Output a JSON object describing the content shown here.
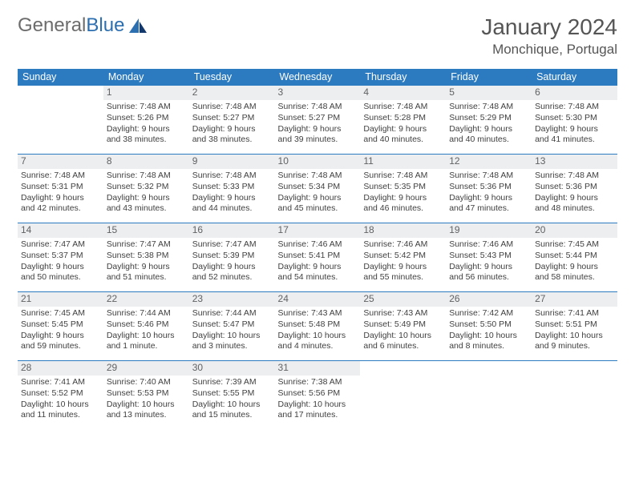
{
  "logo": {
    "word1": "General",
    "word2": "Blue"
  },
  "title": "January 2024",
  "location": "Monchique, Portugal",
  "colors": {
    "header_bg": "#2c7ac0",
    "header_text": "#ffffff",
    "daynum_bg": "#eceef0",
    "cell_border": "#2c7ac0",
    "body_text": "#404040"
  },
  "weekdays": [
    "Sunday",
    "Monday",
    "Tuesday",
    "Wednesday",
    "Thursday",
    "Friday",
    "Saturday"
  ],
  "start_offset": 1,
  "days": [
    {
      "n": 1,
      "sr": "7:48 AM",
      "ss": "5:26 PM",
      "dl": "9 hours and 38 minutes."
    },
    {
      "n": 2,
      "sr": "7:48 AM",
      "ss": "5:27 PM",
      "dl": "9 hours and 38 minutes."
    },
    {
      "n": 3,
      "sr": "7:48 AM",
      "ss": "5:27 PM",
      "dl": "9 hours and 39 minutes."
    },
    {
      "n": 4,
      "sr": "7:48 AM",
      "ss": "5:28 PM",
      "dl": "9 hours and 40 minutes."
    },
    {
      "n": 5,
      "sr": "7:48 AM",
      "ss": "5:29 PM",
      "dl": "9 hours and 40 minutes."
    },
    {
      "n": 6,
      "sr": "7:48 AM",
      "ss": "5:30 PM",
      "dl": "9 hours and 41 minutes."
    },
    {
      "n": 7,
      "sr": "7:48 AM",
      "ss": "5:31 PM",
      "dl": "9 hours and 42 minutes."
    },
    {
      "n": 8,
      "sr": "7:48 AM",
      "ss": "5:32 PM",
      "dl": "9 hours and 43 minutes."
    },
    {
      "n": 9,
      "sr": "7:48 AM",
      "ss": "5:33 PM",
      "dl": "9 hours and 44 minutes."
    },
    {
      "n": 10,
      "sr": "7:48 AM",
      "ss": "5:34 PM",
      "dl": "9 hours and 45 minutes."
    },
    {
      "n": 11,
      "sr": "7:48 AM",
      "ss": "5:35 PM",
      "dl": "9 hours and 46 minutes."
    },
    {
      "n": 12,
      "sr": "7:48 AM",
      "ss": "5:36 PM",
      "dl": "9 hours and 47 minutes."
    },
    {
      "n": 13,
      "sr": "7:48 AM",
      "ss": "5:36 PM",
      "dl": "9 hours and 48 minutes."
    },
    {
      "n": 14,
      "sr": "7:47 AM",
      "ss": "5:37 PM",
      "dl": "9 hours and 50 minutes."
    },
    {
      "n": 15,
      "sr": "7:47 AM",
      "ss": "5:38 PM",
      "dl": "9 hours and 51 minutes."
    },
    {
      "n": 16,
      "sr": "7:47 AM",
      "ss": "5:39 PM",
      "dl": "9 hours and 52 minutes."
    },
    {
      "n": 17,
      "sr": "7:46 AM",
      "ss": "5:41 PM",
      "dl": "9 hours and 54 minutes."
    },
    {
      "n": 18,
      "sr": "7:46 AM",
      "ss": "5:42 PM",
      "dl": "9 hours and 55 minutes."
    },
    {
      "n": 19,
      "sr": "7:46 AM",
      "ss": "5:43 PM",
      "dl": "9 hours and 56 minutes."
    },
    {
      "n": 20,
      "sr": "7:45 AM",
      "ss": "5:44 PM",
      "dl": "9 hours and 58 minutes."
    },
    {
      "n": 21,
      "sr": "7:45 AM",
      "ss": "5:45 PM",
      "dl": "9 hours and 59 minutes."
    },
    {
      "n": 22,
      "sr": "7:44 AM",
      "ss": "5:46 PM",
      "dl": "10 hours and 1 minute."
    },
    {
      "n": 23,
      "sr": "7:44 AM",
      "ss": "5:47 PM",
      "dl": "10 hours and 3 minutes."
    },
    {
      "n": 24,
      "sr": "7:43 AM",
      "ss": "5:48 PM",
      "dl": "10 hours and 4 minutes."
    },
    {
      "n": 25,
      "sr": "7:43 AM",
      "ss": "5:49 PM",
      "dl": "10 hours and 6 minutes."
    },
    {
      "n": 26,
      "sr": "7:42 AM",
      "ss": "5:50 PM",
      "dl": "10 hours and 8 minutes."
    },
    {
      "n": 27,
      "sr": "7:41 AM",
      "ss": "5:51 PM",
      "dl": "10 hours and 9 minutes."
    },
    {
      "n": 28,
      "sr": "7:41 AM",
      "ss": "5:52 PM",
      "dl": "10 hours and 11 minutes."
    },
    {
      "n": 29,
      "sr": "7:40 AM",
      "ss": "5:53 PM",
      "dl": "10 hours and 13 minutes."
    },
    {
      "n": 30,
      "sr": "7:39 AM",
      "ss": "5:55 PM",
      "dl": "10 hours and 15 minutes."
    },
    {
      "n": 31,
      "sr": "7:38 AM",
      "ss": "5:56 PM",
      "dl": "10 hours and 17 minutes."
    }
  ],
  "labels": {
    "sunrise": "Sunrise:",
    "sunset": "Sunset:",
    "daylight": "Daylight:"
  }
}
